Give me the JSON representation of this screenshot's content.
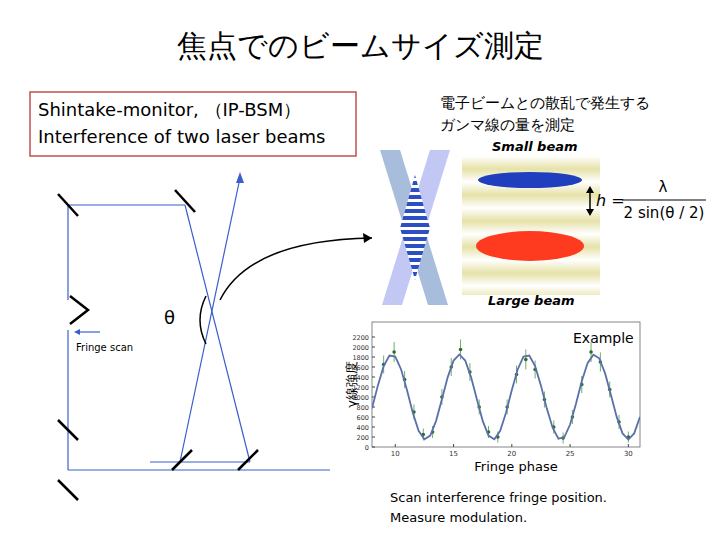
{
  "title": "焦点でのビームサイズ測定",
  "box": {
    "lines": [
      "Shintake-monitor, （IP-BSM）",
      "Interference of two laser beams"
    ]
  },
  "caption": {
    "lines": [
      "電子ビームとの散乱で発生する",
      "ガンマ線の量を測定"
    ]
  },
  "fringe_figure": {
    "small": "Small beam",
    "large": "Large beam",
    "formula": {
      "lhs": "h =",
      "numerator": "λ",
      "denominator": "2 sin(θ / 2)"
    }
  },
  "optics": {
    "angle": "θ",
    "fringe_scan": "Fringe scan"
  },
  "chart_data": {
    "type": "scatter",
    "x_label": "Fringe phase",
    "y_label": "γ線強度",
    "annotation": "Example",
    "xlim": [
      8,
      31
    ],
    "ylim": [
      0,
      2500
    ],
    "xticks": [
      10,
      15,
      20,
      25,
      30
    ],
    "yticks": [
      0,
      200,
      400,
      600,
      800,
      1000,
      1200,
      1400,
      1600,
      1800,
      2000,
      2200
    ],
    "grid": false,
    "series": [
      {
        "type": "scatter",
        "color": "#2f6b2f",
        "marker": "circle",
        "x": [
          9.0,
          9.9,
          10.8,
          11.6,
          12.4,
          13.2,
          14.0,
          14.8,
          15.6,
          16.4,
          17.2,
          18.0,
          18.8,
          19.6,
          20.4,
          21.2,
          22.0,
          22.8,
          23.6,
          24.4,
          25.2,
          26.0,
          26.8,
          27.6,
          28.4,
          29.2,
          30.0
        ],
        "values": [
          1650,
          1900,
          1350,
          700,
          250,
          300,
          1000,
          1600,
          1950,
          1500,
          800,
          300,
          200,
          800,
          1450,
          1750,
          1550,
          950,
          400,
          180,
          600,
          1250,
          1900,
          1700,
          1150,
          500,
          200
        ],
        "errors": [
          180,
          200,
          170,
          150,
          120,
          120,
          160,
          180,
          200,
          180,
          150,
          120,
          110,
          150,
          180,
          200,
          180,
          160,
          130,
          110,
          140,
          170,
          200,
          190,
          160,
          140,
          110
        ]
      },
      {
        "type": "line",
        "color": "#5b6fa8",
        "line_style": "solid",
        "x": [
          8,
          8.5,
          9,
          9.5,
          10,
          10.5,
          11,
          11.5,
          12,
          12.5,
          13,
          13.5,
          14,
          14.5,
          15,
          15.5,
          16,
          16.5,
          17,
          17.5,
          18,
          18.5,
          19,
          19.5,
          20,
          20.5,
          21,
          21.5,
          22,
          22.5,
          23,
          23.5,
          24,
          24.5,
          25,
          25.5,
          26,
          26.5,
          27,
          27.5,
          28,
          28.5,
          29,
          29.5,
          30,
          30.5,
          31
        ],
        "values": [
          773,
          1227,
          1617,
          1830,
          1808,
          1551,
          1138,
          686,
          323,
          155,
          228,
          523,
          954,
          1398,
          1728,
          1850,
          1729,
          1398,
          954,
          523,
          228,
          155,
          323,
          686,
          1138,
          1551,
          1808,
          1830,
          1617,
          1227,
          773,
          385,
          167,
          194,
          450,
          862,
          1315,
          1677,
          1845,
          1773,
          1477,
          1046,
          602,
          272,
          150,
          272,
          602
        ]
      }
    ]
  },
  "bottom_text": {
    "lines": [
      "Scan interference fringe position.",
      "Measure modulation."
    ]
  }
}
